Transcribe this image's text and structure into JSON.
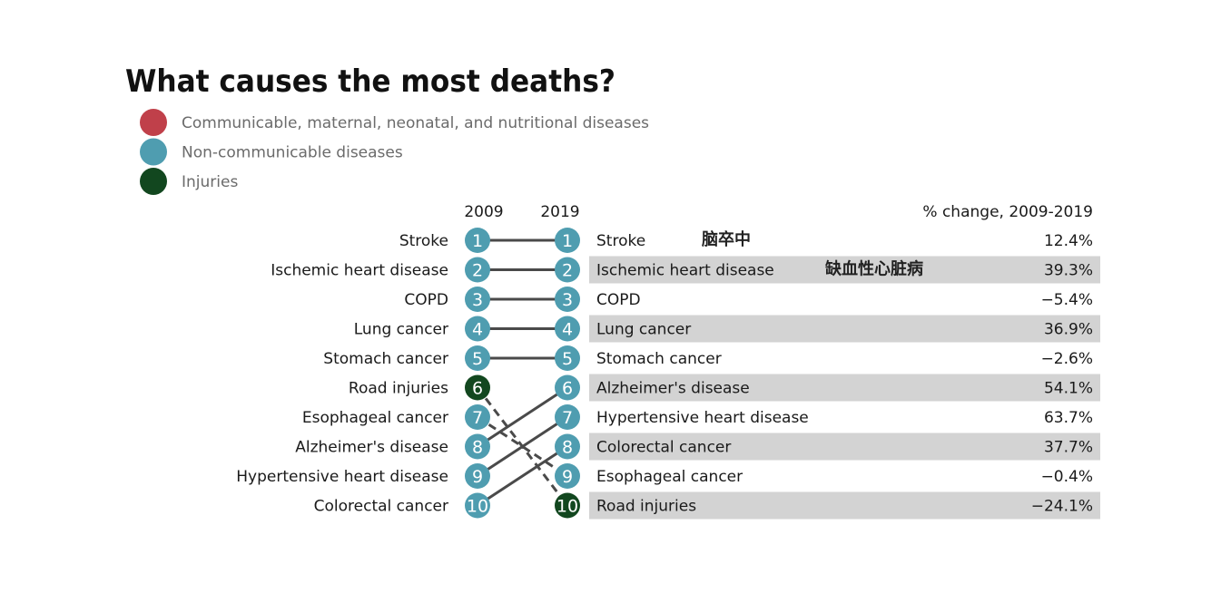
{
  "chart_data": {
    "type": "slope",
    "title": "What causes the most deaths?",
    "legend": [
      {
        "name": "Communicable, maternal, neonatal, and nutritional diseases",
        "color": "#c0404a"
      },
      {
        "name": "Non-communicable diseases",
        "color": "#4f9db0"
      },
      {
        "name": "Injuries",
        "color": "#12471f"
      }
    ],
    "year_left": "2009",
    "year_right": "2019",
    "change_header": "% change, 2009-2019",
    "left_ranking": [
      {
        "rank": 1,
        "cause": "Stroke",
        "category": "Non-communicable diseases"
      },
      {
        "rank": 2,
        "cause": "Ischemic heart disease",
        "category": "Non-communicable diseases"
      },
      {
        "rank": 3,
        "cause": "COPD",
        "category": "Non-communicable diseases"
      },
      {
        "rank": 4,
        "cause": "Lung cancer",
        "category": "Non-communicable diseases"
      },
      {
        "rank": 5,
        "cause": "Stomach cancer",
        "category": "Non-communicable diseases"
      },
      {
        "rank": 6,
        "cause": "Road injuries",
        "category": "Injuries"
      },
      {
        "rank": 7,
        "cause": "Esophageal cancer",
        "category": "Non-communicable diseases"
      },
      {
        "rank": 8,
        "cause": "Alzheimer's disease",
        "category": "Non-communicable diseases"
      },
      {
        "rank": 9,
        "cause": "Hypertensive heart disease",
        "category": "Non-communicable diseases"
      },
      {
        "rank": 10,
        "cause": "Colorectal cancer",
        "category": "Non-communicable diseases"
      }
    ],
    "right_ranking": [
      {
        "rank": 1,
        "cause": "Stroke",
        "category": "Non-communicable diseases",
        "change": "12.4%",
        "note": "脑卒中"
      },
      {
        "rank": 2,
        "cause": "Ischemic heart disease",
        "category": "Non-communicable diseases",
        "change": "39.3%",
        "note": "缺血性心脏病"
      },
      {
        "rank": 3,
        "cause": "COPD",
        "category": "Non-communicable diseases",
        "change": "−5.4%"
      },
      {
        "rank": 4,
        "cause": "Lung cancer",
        "category": "Non-communicable diseases",
        "change": "36.9%"
      },
      {
        "rank": 5,
        "cause": "Stomach cancer",
        "category": "Non-communicable diseases",
        "change": "−2.6%"
      },
      {
        "rank": 6,
        "cause": "Alzheimer's disease",
        "category": "Non-communicable diseases",
        "change": "54.1%"
      },
      {
        "rank": 7,
        "cause": "Hypertensive heart disease",
        "category": "Non-communicable diseases",
        "change": "63.7%"
      },
      {
        "rank": 8,
        "cause": "Colorectal cancer",
        "category": "Non-communicable diseases",
        "change": "37.7%"
      },
      {
        "rank": 9,
        "cause": "Esophageal cancer",
        "category": "Non-communicable diseases",
        "change": "−0.4%"
      },
      {
        "rank": 10,
        "cause": "Road injuries",
        "category": "Injuries",
        "change": "−24.1%"
      }
    ],
    "links": [
      {
        "from": 1,
        "to": 1,
        "style": "solid"
      },
      {
        "from": 2,
        "to": 2,
        "style": "solid"
      },
      {
        "from": 3,
        "to": 3,
        "style": "solid"
      },
      {
        "from": 4,
        "to": 4,
        "style": "solid"
      },
      {
        "from": 5,
        "to": 5,
        "style": "solid"
      },
      {
        "from": 6,
        "to": 10,
        "style": "dashed"
      },
      {
        "from": 7,
        "to": 9,
        "style": "dashed"
      },
      {
        "from": 8,
        "to": 6,
        "style": "solid"
      },
      {
        "from": 9,
        "to": 7,
        "style": "solid"
      },
      {
        "from": 10,
        "to": 8,
        "style": "solid"
      }
    ],
    "colors": {
      "text": "#1a1a1a",
      "legend_text": "#6b6b6b",
      "line": "#4a4a4a",
      "row_shade": "#d3d3d3",
      "badge_text": "#ffffff"
    }
  }
}
